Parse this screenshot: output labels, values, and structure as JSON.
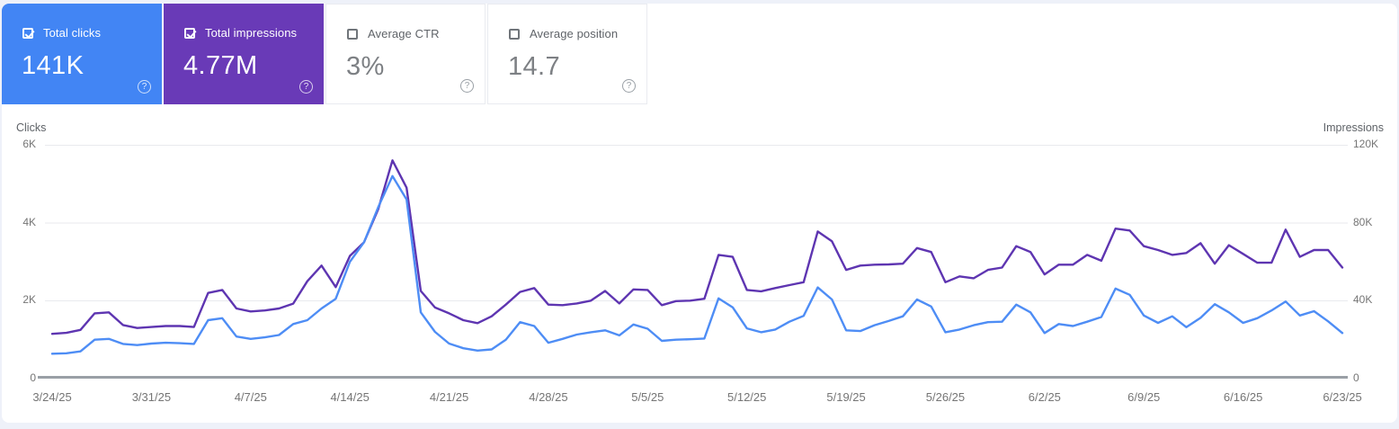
{
  "colors": {
    "page_background": "#eef1f9",
    "clicks_tile": "#4285f4",
    "impressions_tile": "#693ab7",
    "clicks_line": "#4e8df5",
    "impressions_line": "#5e35b1",
    "gridline": "#e9eaee",
    "baseline": "#9aa0a6"
  },
  "icons": {
    "help_glyph": "?"
  },
  "cards": [
    {
      "label": "Total clicks",
      "value": "141K",
      "checked": true,
      "color": "#4285f4"
    },
    {
      "label": "Total impressions",
      "value": "4.77M",
      "checked": true,
      "color": "#693ab7"
    },
    {
      "label": "Average CTR",
      "value": "3%",
      "checked": false
    },
    {
      "label": "Average position",
      "value": "14.7",
      "checked": false
    }
  ],
  "chart_data": {
    "type": "line",
    "grid": true,
    "legend_position": "none",
    "left_axis": {
      "title": "Clicks",
      "ticks_top_to_bottom": [
        "6K",
        "4K",
        "2K",
        "0"
      ],
      "range": [
        0,
        6000
      ]
    },
    "right_axis": {
      "title": "Impressions",
      "ticks_top_to_bottom": [
        "120K",
        "80K",
        "40K",
        "0"
      ],
      "range": [
        0,
        120000
      ]
    },
    "x_tick_labels": [
      "3/24/25",
      "3/31/25",
      "4/7/25",
      "4/14/25",
      "4/21/25",
      "4/28/25",
      "5/5/25",
      "5/12/25",
      "5/19/25",
      "5/26/25",
      "6/2/25",
      "6/9/25",
      "6/16/25",
      "6/23/25"
    ],
    "x": [
      "3/24/25",
      "3/25/25",
      "3/26/25",
      "3/27/25",
      "3/28/25",
      "3/29/25",
      "3/30/25",
      "3/31/25",
      "4/1/25",
      "4/2/25",
      "4/3/25",
      "4/4/25",
      "4/5/25",
      "4/6/25",
      "4/7/25",
      "4/8/25",
      "4/9/25",
      "4/10/25",
      "4/11/25",
      "4/12/25",
      "4/13/25",
      "4/14/25",
      "4/15/25",
      "4/16/25",
      "4/17/25",
      "4/18/25",
      "4/19/25",
      "4/20/25",
      "4/21/25",
      "4/22/25",
      "4/23/25",
      "4/24/25",
      "4/25/25",
      "4/26/25",
      "4/27/25",
      "4/28/25",
      "4/29/25",
      "4/30/25",
      "5/1/25",
      "5/2/25",
      "5/3/25",
      "5/4/25",
      "5/5/25",
      "5/6/25",
      "5/7/25",
      "5/8/25",
      "5/9/25",
      "5/10/25",
      "5/11/25",
      "5/12/25",
      "5/13/25",
      "5/14/25",
      "5/15/25",
      "5/16/25",
      "5/17/25",
      "5/18/25",
      "5/19/25",
      "5/20/25",
      "5/21/25",
      "5/22/25",
      "5/23/25",
      "5/24/25",
      "5/25/25",
      "5/26/25",
      "5/27/25",
      "5/28/25",
      "5/29/25",
      "5/30/25",
      "5/31/25",
      "6/1/25",
      "6/2/25",
      "6/3/25",
      "6/4/25",
      "6/5/25",
      "6/6/25",
      "6/7/25",
      "6/8/25",
      "6/9/25",
      "6/10/25",
      "6/11/25",
      "6/12/25",
      "6/13/25",
      "6/14/25",
      "6/15/25",
      "6/16/25",
      "6/17/25",
      "6/18/25",
      "6/19/25",
      "6/20/25",
      "6/21/25",
      "6/22/25",
      "6/23/25"
    ],
    "series": [
      {
        "name": "Clicks",
        "axis": "left",
        "color": "#4e8df5",
        "values": [
          640,
          650,
          700,
          1000,
          1020,
          890,
          860,
          900,
          920,
          910,
          890,
          1500,
          1550,
          1080,
          1020,
          1060,
          1120,
          1400,
          1500,
          1800,
          2050,
          3000,
          3500,
          4400,
          5200,
          4600,
          1700,
          1200,
          900,
          780,
          720,
          750,
          1000,
          1450,
          1350,
          920,
          1020,
          1130,
          1190,
          1240,
          1110,
          1390,
          1280,
          970,
          1000,
          1010,
          1030,
          2060,
          1830,
          1290,
          1190,
          1260,
          1460,
          1610,
          2340,
          2030,
          1240,
          1220,
          1370,
          1480,
          1600,
          2030,
          1850,
          1190,
          1260,
          1370,
          1450,
          1460,
          1900,
          1700,
          1170,
          1400,
          1350,
          1460,
          1580,
          2310,
          2150,
          1620,
          1430,
          1600,
          1320,
          1560,
          1910,
          1700,
          1430,
          1550,
          1750,
          1980,
          1620,
          1730,
          1470,
          1170
        ]
      },
      {
        "name": "Impressions",
        "axis": "right",
        "color": "#5e35b1",
        "values": [
          23000,
          23500,
          25000,
          33500,
          34000,
          27500,
          26000,
          26500,
          27000,
          27000,
          26500,
          44000,
          45500,
          36000,
          34500,
          35000,
          36000,
          38500,
          50000,
          58000,
          47000,
          63000,
          70000,
          87000,
          112000,
          98000,
          45000,
          36500,
          33500,
          30000,
          28500,
          32000,
          38000,
          44500,
          46500,
          38000,
          37700,
          38600,
          40000,
          45000,
          38600,
          45800,
          45500,
          37700,
          39800,
          40000,
          41000,
          63500,
          62500,
          45500,
          44800,
          46500,
          48000,
          49500,
          75500,
          70500,
          55800,
          58000,
          58500,
          58600,
          59000,
          67000,
          65000,
          49500,
          52500,
          51500,
          55800,
          57000,
          68000,
          65000,
          53500,
          58500,
          58500,
          63500,
          60500,
          77000,
          76000,
          68000,
          66000,
          63500,
          64500,
          69500,
          59000,
          68500,
          64000,
          59500,
          59500,
          76500,
          62500,
          66000,
          66000,
          57000
        ]
      }
    ]
  }
}
